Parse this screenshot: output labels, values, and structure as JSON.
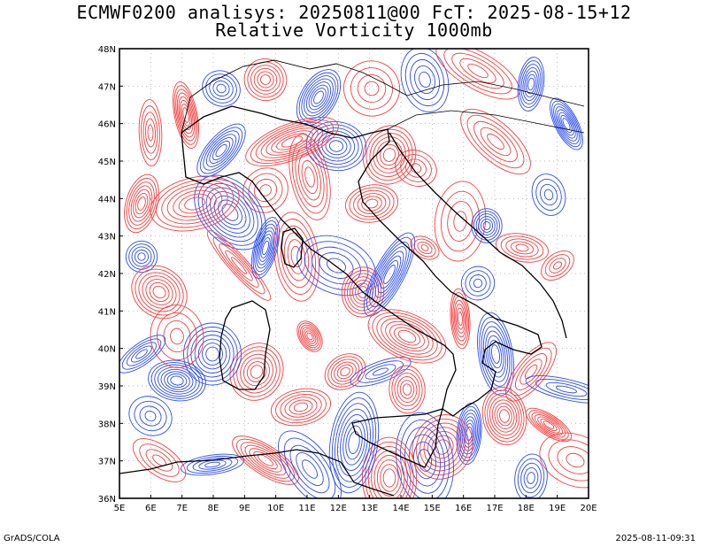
{
  "header": {
    "line1": "ECMWF0200 analisys: 20250811@00 FcT: 2025-08-15+12",
    "line2": "Relative Vorticity 1000mb"
  },
  "footer": {
    "left": "GrADS/COLA",
    "right": "2025-08-11-09:31"
  },
  "map": {
    "lon_range": [
      5,
      20
    ],
    "lat_range": [
      36,
      48
    ],
    "lon_labels": [
      "5E",
      "6E",
      "7E",
      "8E",
      "9E",
      "10E",
      "11E",
      "12E",
      "13E",
      "14E",
      "15E",
      "16E",
      "17E",
      "18E",
      "19E",
      "20E"
    ],
    "lat_labels": [
      "36N",
      "37N",
      "38N",
      "39N",
      "40N",
      "41N",
      "42N",
      "43N",
      "44N",
      "45N",
      "46N",
      "47N",
      "48N"
    ],
    "colors": {
      "positive": "#ff3b3b",
      "negative": "#2a4bff",
      "grid": "#a0a0a0",
      "coast": "#000000"
    }
  }
}
